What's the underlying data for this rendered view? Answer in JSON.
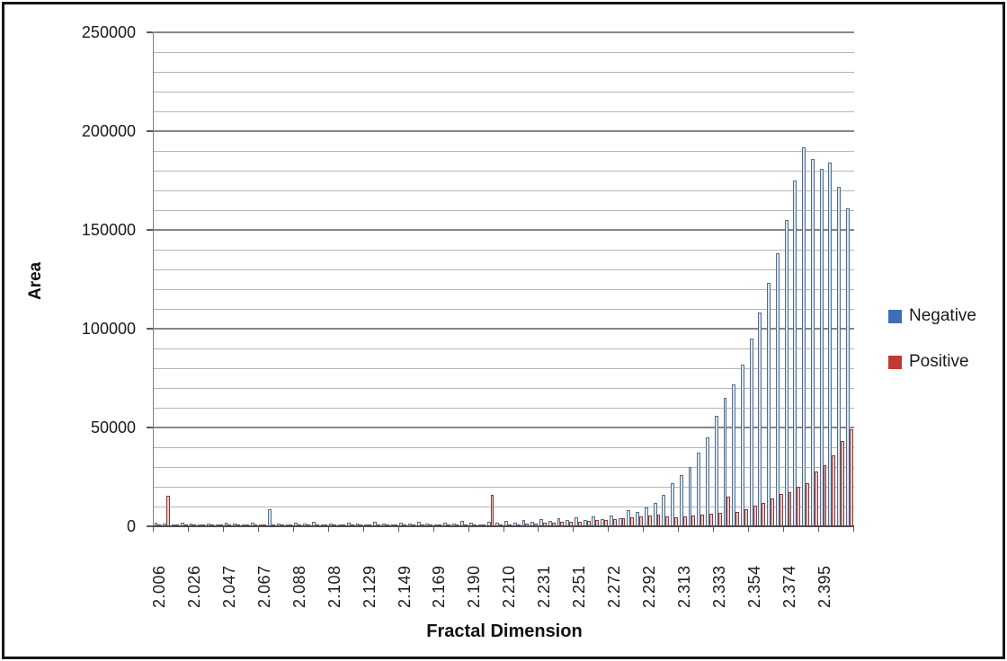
{
  "chart_data": {
    "type": "bar",
    "title": "",
    "xlabel": "Fractal Dimension",
    "ylabel": "Area",
    "ylim": [
      0,
      250000
    ],
    "y_major_ticks": [
      0,
      50000,
      100000,
      150000,
      200000,
      250000
    ],
    "y_minor_step": 10000,
    "grid": "horizontal-minor-and-major",
    "legend_position": "right",
    "legend": [
      {
        "name": "Negative",
        "color": "#3d6eb4"
      },
      {
        "name": "Positive",
        "color": "#c03a33"
      }
    ],
    "x_tick_labels": [
      "2.006",
      "2.026",
      "2.047",
      "2.067",
      "2.088",
      "2.108",
      "2.129",
      "2.149",
      "2.169",
      "2.190",
      "2.210",
      "2.231",
      "2.251",
      "2.272",
      "2.292",
      "2.313",
      "2.333",
      "2.354",
      "2.374",
      "2.395"
    ],
    "label_every_n_bars": 4,
    "x_start": 2.006,
    "x_step": 0.00512,
    "n_clusters": 80,
    "series": [
      {
        "name": "Negative",
        "fill": "#dbe5f1",
        "border": "#4f6e8f",
        "values": [
          2000,
          1500,
          900,
          1800,
          1200,
          800,
          1500,
          1000,
          2000,
          1200,
          900,
          1600,
          1100,
          8800,
          1400,
          900,
          1700,
          1200,
          2100,
          1000,
          1500,
          900,
          1900,
          1300,
          1000,
          2200,
          1400,
          1000,
          1700,
          1200,
          2400,
          1500,
          1000,
          2000,
          1300,
          2600,
          1600,
          1100,
          2500,
          1800,
          2800,
          2000,
          3200,
          2400,
          3600,
          2700,
          4000,
          3000,
          4400,
          3400,
          4800,
          3800,
          5300,
          4300,
          8200,
          7500,
          9500,
          12000,
          15700,
          22000,
          26000,
          30000,
          37500,
          45000,
          56000,
          65000,
          72000,
          82000,
          95000,
          108000,
          123000,
          138000,
          155000,
          175000,
          192000,
          186000,
          181000,
          184000,
          172000,
          161000
        ]
      },
      {
        "name": "Positive",
        "fill": "#f0cac9",
        "border": "#8c3836",
        "values": [
          600,
          15500,
          400,
          600,
          300,
          500,
          400,
          600,
          400,
          500,
          300,
          600,
          400,
          700,
          400,
          300,
          600,
          400,
          500,
          300,
          600,
          400,
          500,
          300,
          600,
          400,
          500,
          400,
          600,
          400,
          700,
          400,
          500,
          600,
          400,
          700,
          500,
          400,
          15800,
          900,
          1000,
          1100,
          1300,
          1500,
          1700,
          1900,
          2100,
          2300,
          2500,
          2800,
          3100,
          3400,
          3800,
          4200,
          4600,
          5000,
          5400,
          5800,
          5200,
          4500,
          5000,
          5500,
          6000,
          6500,
          7000,
          15000,
          7500,
          8500,
          10500,
          12000,
          14000,
          16200,
          17200,
          20200,
          22000,
          27700,
          31000,
          36000,
          43000,
          49000
        ]
      }
    ]
  }
}
